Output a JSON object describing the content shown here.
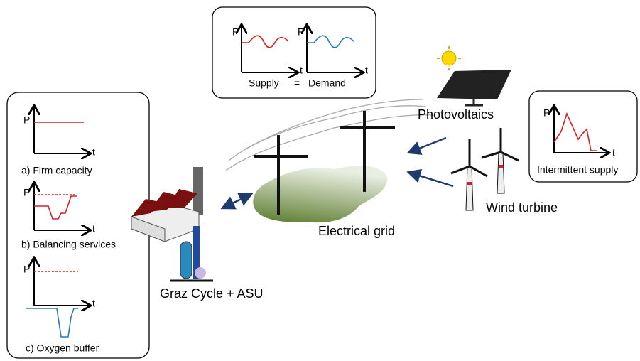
{
  "supply_demand": {
    "supply": {
      "axis_y": "P",
      "axis_x": "t",
      "label": "Supply"
    },
    "equals": "=",
    "demand": {
      "axis_y": "P",
      "axis_x": "t",
      "label": "Demand"
    }
  },
  "operation_modes": [
    {
      "axis_y": "P",
      "axis_x": "t",
      "label": "a) Firm capacity"
    },
    {
      "axis_y": "P",
      "axis_x": "t",
      "label": "b) Balancing services"
    },
    {
      "axis_y": "P",
      "axis_x": "t",
      "label": "c) Oxygen buffer"
    }
  ],
  "intermittent": {
    "axis_y": "P",
    "axis_x": "t",
    "label": "Intermittent supply"
  },
  "labels": {
    "photovoltaics": "Photovoltaics",
    "wind_turbine": "Wind turbine",
    "electrical_grid": "Electrical grid",
    "plant": "Graz Cycle + ASU"
  }
}
